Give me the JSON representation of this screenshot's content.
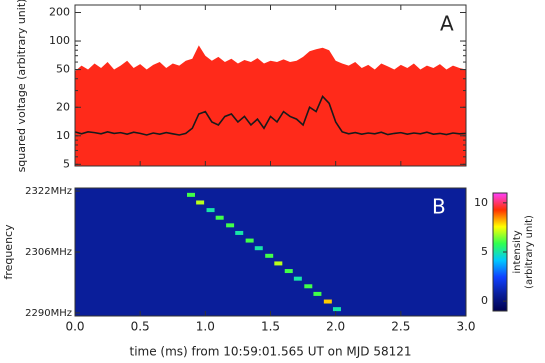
{
  "chart_data": [
    {
      "type": "line",
      "label": "A",
      "ylabel": "squared voltage (arbitrary unit)",
      "log": true,
      "ylim": [
        4.8,
        240
      ],
      "yticks": [
        5,
        10,
        20,
        50,
        100,
        200
      ],
      "xlim": [
        0,
        3
      ],
      "x": [
        0,
        0.05,
        0.1,
        0.15,
        0.2,
        0.25,
        0.3,
        0.35,
        0.4,
        0.45,
        0.5,
        0.55,
        0.6,
        0.65,
        0.7,
        0.75,
        0.8,
        0.85,
        0.9,
        0.95,
        1.0,
        1.05,
        1.1,
        1.15,
        1.2,
        1.25,
        1.3,
        1.35,
        1.4,
        1.45,
        1.5,
        1.55,
        1.6,
        1.65,
        1.7,
        1.75,
        1.8,
        1.85,
        1.9,
        1.95,
        2.0,
        2.05,
        2.1,
        2.15,
        2.2,
        2.25,
        2.3,
        2.35,
        2.4,
        2.45,
        2.5,
        2.55,
        2.6,
        2.65,
        2.7,
        2.75,
        2.8,
        2.85,
        2.9,
        2.95,
        3.0
      ],
      "series": [
        {
          "color": "#ff2a1a",
          "fill": true,
          "values": [
            48,
            55,
            50,
            58,
            52,
            60,
            50,
            55,
            62,
            52,
            57,
            50,
            56,
            60,
            52,
            58,
            55,
            62,
            65,
            90,
            70,
            62,
            68,
            60,
            65,
            58,
            63,
            60,
            66,
            58,
            62,
            60,
            64,
            60,
            62,
            68,
            78,
            82,
            85,
            80,
            62,
            58,
            55,
            60,
            52,
            56,
            50,
            58,
            54,
            50,
            56,
            52,
            58,
            50,
            55,
            52,
            57,
            50,
            55,
            52,
            50
          ]
        },
        {
          "color": "#1a1a1a",
          "fill": false,
          "values": [
            11,
            10.5,
            11,
            10.8,
            10.5,
            11,
            10.6,
            10.8,
            10.4,
            10.9,
            10.6,
            10.2,
            10.7,
            10.4,
            10.8,
            10.5,
            10.2,
            10.6,
            12,
            17,
            18,
            14,
            13,
            16,
            17,
            14,
            16,
            13,
            15,
            12,
            16,
            14,
            18,
            16,
            15,
            13,
            20,
            18,
            26,
            22,
            14,
            11,
            10.5,
            10.8,
            10.4,
            10.7,
            10.5,
            10.9,
            10.3,
            10.6,
            10.8,
            10.4,
            10.7,
            10.5,
            10.9,
            10.4,
            10.6,
            10.3,
            10.7,
            10.5,
            10.6
          ]
        }
      ]
    },
    {
      "type": "heatmap",
      "label": "B",
      "ylabel": "frequency",
      "xlabel": "time (ms) from 10:59:01.565 UT on MJD 58121",
      "xlim": [
        0,
        3
      ],
      "xticks": [
        {
          "value": 0,
          "label": "0.0"
        },
        0.5,
        {
          "value": 1,
          "label": "1.0"
        },
        1.5,
        {
          "value": 2,
          "label": "2.0"
        },
        2.5,
        {
          "value": 3,
          "label": "3.0"
        }
      ],
      "ylim": [
        2289.2,
        2322.8
      ],
      "yticks": [
        {
          "value": 2290,
          "label": "2290MHz"
        },
        {
          "value": 2306,
          "label": "2306MHz"
        },
        {
          "value": 2322,
          "label": "2322MHz"
        }
      ],
      "x": [
        0.89,
        0.96,
        1.04,
        1.11,
        1.19,
        1.26,
        1.34,
        1.41,
        1.49,
        1.56,
        1.64,
        1.71,
        1.79,
        1.86,
        1.94,
        2.01
      ],
      "y": [
        2321,
        2319,
        2317,
        2315,
        2313,
        2311,
        2309,
        2307,
        2305,
        2303,
        2301,
        2299,
        2297,
        2295,
        2293,
        2291
      ],
      "values": [
        6,
        7,
        5,
        6,
        6,
        5,
        6,
        5,
        6,
        7,
        6,
        5,
        6,
        6,
        8,
        5
      ],
      "colorbar": {
        "label": [
          "intensity",
          "(arbitrary unit)"
        ],
        "lim": [
          -1,
          11
        ],
        "ticks": [
          0,
          5,
          10
        ],
        "colormap": [
          "#000050",
          "#0a1e9a",
          "#1040ff",
          "#00c8ff",
          "#30ff50",
          "#ffff00",
          "#ff3000",
          "#ff40ff"
        ]
      }
    }
  ]
}
